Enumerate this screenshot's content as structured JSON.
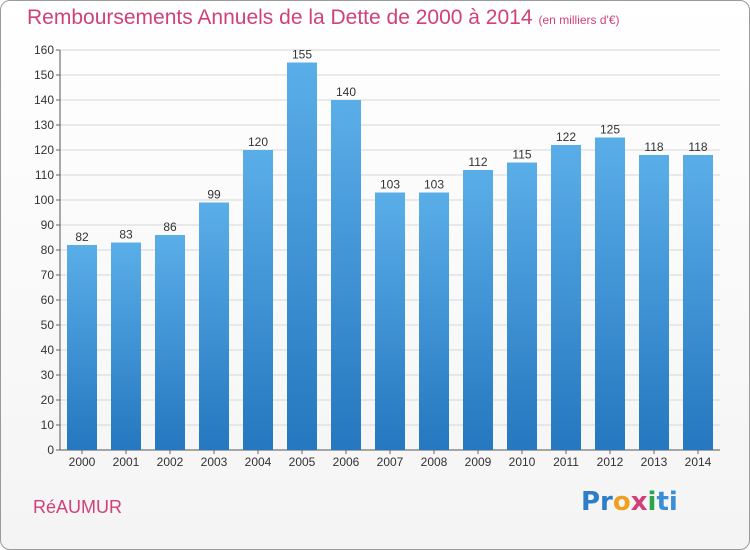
{
  "title": "Remboursements Annuels de la Dette de 2000 à 2014",
  "title_unit": "(en milliers d'€)",
  "commune": "RéAUMUR",
  "logo": {
    "parts": [
      "Pr",
      "o",
      "x",
      "i",
      "ti"
    ],
    "text": "Proxiti"
  },
  "colors": {
    "title": "#d0417a",
    "bar_top": "#5aaee8",
    "bar_bottom": "#2577bf"
  },
  "chart_data": {
    "type": "bar",
    "title": "Remboursements Annuels de la Dette de 2000 à 2014",
    "xlabel": "",
    "ylabel": "",
    "categories": [
      "2000",
      "2001",
      "2002",
      "2003",
      "2004",
      "2005",
      "2006",
      "2007",
      "2008",
      "2009",
      "2010",
      "2011",
      "2012",
      "2013",
      "2014"
    ],
    "values": [
      82,
      83,
      86,
      99,
      120,
      155,
      140,
      103,
      103,
      112,
      115,
      122,
      125,
      118,
      118
    ],
    "ylim": [
      0,
      160
    ],
    "yticks": [
      0,
      10,
      20,
      30,
      40,
      50,
      60,
      70,
      80,
      90,
      100,
      110,
      120,
      130,
      140,
      150,
      160
    ],
    "grid": true,
    "legend": "none"
  }
}
